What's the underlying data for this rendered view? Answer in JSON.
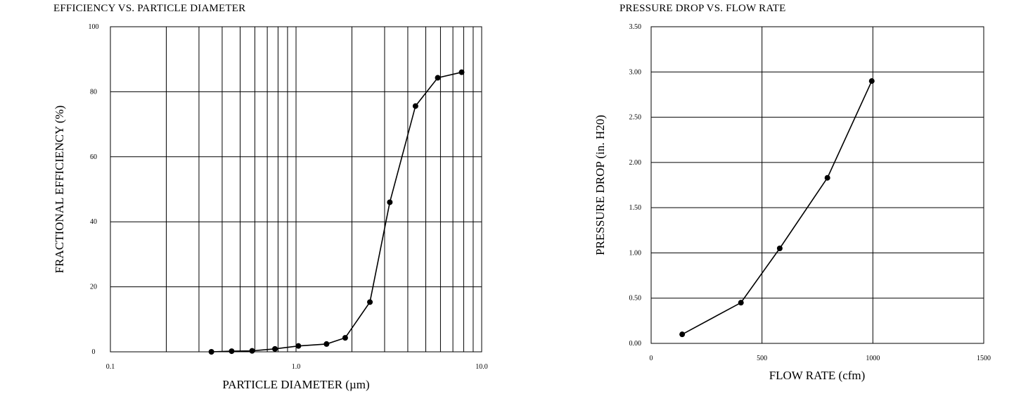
{
  "chart_data": [
    {
      "type": "line",
      "title": "EFFICIENCY VS. PARTICLE DIAMETER",
      "xlabel": "PARTICLE DIAMETER (µm)",
      "ylabel": "FRACTIONAL EFFICIENCY (%)",
      "xscale": "log",
      "xlim": [
        0.1,
        10.0
      ],
      "ylim": [
        0,
        100
      ],
      "xticks": [
        0.1,
        1.0,
        10.0
      ],
      "xtick_labels": [
        "0.1",
        "1.0",
        "10.0"
      ],
      "yticks": [
        0,
        20,
        40,
        60,
        80,
        100
      ],
      "ytick_labels": [
        "0",
        "20",
        "40",
        "60",
        "80",
        "100"
      ],
      "grid": true,
      "series": [
        {
          "x": [
            0.35,
            0.45,
            0.58,
            0.77,
            1.03,
            1.46,
            1.84,
            2.5,
            3.2,
            4.4,
            5.8,
            7.8
          ],
          "y": [
            0.0,
            0.2,
            0.3,
            0.9,
            1.8,
            2.4,
            4.3,
            15.3,
            46.0,
            75.6,
            84.3,
            86.0
          ]
        }
      ]
    },
    {
      "type": "line",
      "title": "PRESSURE DROP VS. FLOW RATE",
      "xlabel": "FLOW RATE (cfm)",
      "ylabel": "PRESSURE DROP (in. H20)",
      "xlim": [
        0,
        1500
      ],
      "ylim": [
        0.0,
        3.5
      ],
      "xticks": [
        0,
        500,
        1000,
        1500
      ],
      "xtick_labels": [
        "0",
        "500",
        "1000",
        "1500"
      ],
      "yticks": [
        0.0,
        0.5,
        1.0,
        1.5,
        2.0,
        2.5,
        3.0,
        3.5
      ],
      "ytick_labels": [
        "0.00",
        "0.50",
        "1.00",
        "1.50",
        "2.00",
        "2.50",
        "3.00",
        "3.50"
      ],
      "grid": true,
      "series": [
        {
          "x": [
            140,
            405,
            580,
            795,
            995
          ],
          "y": [
            0.1,
            0.45,
            1.05,
            1.83,
            2.9
          ]
        }
      ]
    }
  ]
}
